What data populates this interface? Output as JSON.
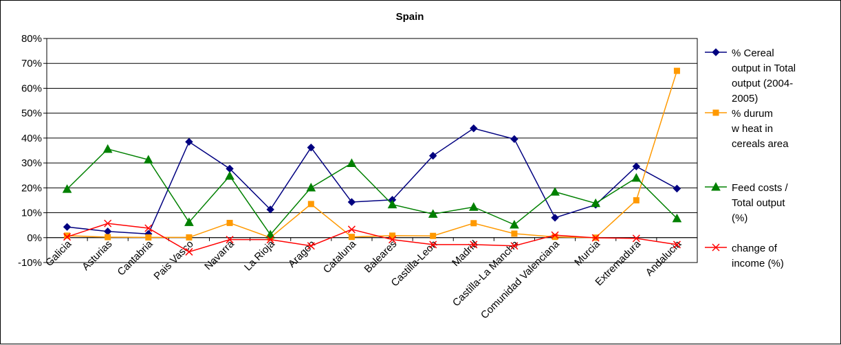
{
  "chart_data": {
    "type": "line",
    "title": "Spain",
    "categories": [
      "Galicia",
      "Asturias",
      "Cantabria",
      "Pais Vasco",
      "Navarra",
      "La Rioja",
      "Aragon",
      "Cataluna",
      "Baleares",
      "Castilla-Leon",
      "Madrid",
      "Castilla-La Mancha",
      "Comunidad Valenciana",
      "Murcia",
      "Extremadura",
      "Andalucia"
    ],
    "ylim": [
      -0.1,
      0.8
    ],
    "yticks": [
      -0.1,
      0.0,
      0.1,
      0.2,
      0.3,
      0.4,
      0.5,
      0.6,
      0.7,
      0.8
    ],
    "ytick_labels": [
      "-10%",
      "0%",
      "10%",
      "20%",
      "30%",
      "40%",
      "50%",
      "60%",
      "70%",
      "80%"
    ],
    "grid": "horizontal",
    "legend_position": "right",
    "series": [
      {
        "name": "% Cereal output in Total output  (2004-2005)",
        "legend_lines": [
          "% Cereal",
          "output in Total",
          "output  (2004-",
          "2005)"
        ],
        "color": "#000080",
        "marker": "diamond",
        "values": [
          0.043,
          0.025,
          0.015,
          0.385,
          0.277,
          0.113,
          0.362,
          0.143,
          0.152,
          0.329,
          0.439,
          0.396,
          0.08,
          0.132,
          0.286,
          0.197
        ]
      },
      {
        "name": "% durum w heat in cereals area",
        "legend_lines": [
          "% durum",
          "w heat in",
          "cereals area"
        ],
        "color": "#FF9900",
        "marker": "square",
        "values": [
          0.008,
          0.002,
          0.001,
          0.001,
          0.059,
          0.0,
          0.135,
          0.003,
          0.008,
          0.007,
          0.058,
          0.016,
          0.003,
          0.0,
          0.15,
          0.67
        ]
      },
      {
        "name": "Feed costs / Total output (%)",
        "legend_lines": [
          "Feed costs /",
          "Total output",
          "(%)"
        ],
        "color": "#008000",
        "marker": "triangle",
        "values": [
          0.195,
          0.356,
          0.313,
          0.062,
          0.248,
          0.012,
          0.201,
          0.299,
          0.133,
          0.095,
          0.123,
          0.052,
          0.184,
          0.138,
          0.24,
          0.077
        ]
      },
      {
        "name": "change of income (%)",
        "legend_lines": [
          "change of",
          "income (%)"
        ],
        "color": "#FF0000",
        "marker": "x",
        "values": [
          0.003,
          0.057,
          0.038,
          -0.057,
          -0.008,
          -0.008,
          -0.033,
          0.033,
          -0.008,
          -0.028,
          -0.028,
          -0.033,
          0.01,
          -0.001,
          -0.003,
          -0.028
        ]
      }
    ]
  }
}
